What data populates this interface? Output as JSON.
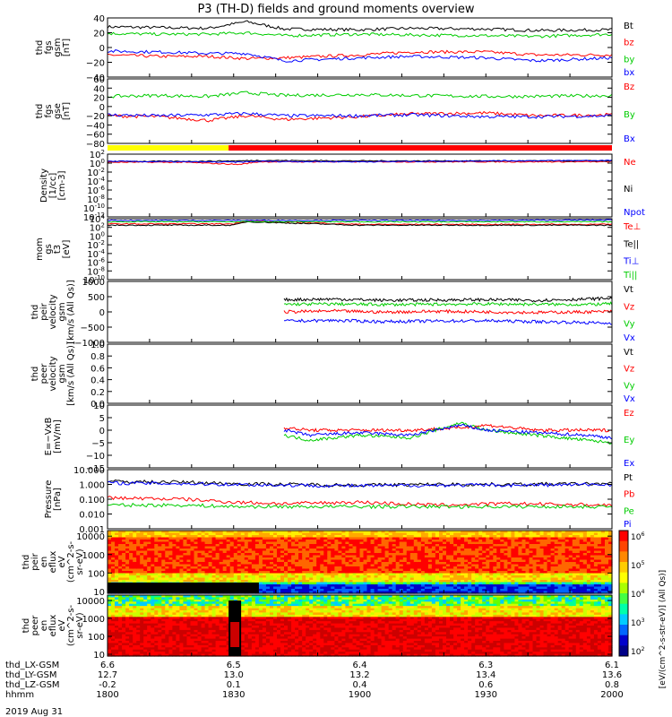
{
  "title": "P3 (TH-D) fields and ground moments overview",
  "date_label": "2019 Aug 31",
  "footer": {
    "rows": [
      {
        "label": "thd_LX-GSM",
        "values": [
          "6.6",
          "6.5",
          "6.4",
          "6.3",
          "6.1"
        ]
      },
      {
        "label": "thd_LY-GSM",
        "values": [
          "12.7",
          "13.0",
          "13.2",
          "13.4",
          "13.6"
        ]
      },
      {
        "label": "thd_LZ-GSM",
        "values": [
          "-0.2",
          "0.1",
          "0.4",
          "0.6",
          "0.8"
        ]
      },
      {
        "label": "hhmm",
        "values": [
          "1800",
          "1830",
          "1900",
          "1930",
          "2000"
        ]
      }
    ]
  },
  "colorbar": {
    "ticks": [
      "10^6",
      "10^5",
      "10^4",
      "10^3",
      "10^2"
    ],
    "label": "[eV/(cm^2-s-str-eV)] (All Qs)]"
  },
  "chart_data": [
    {
      "type": "line",
      "panel": "fgs_gsm",
      "ylabel_lines": [
        "thd",
        "fgs",
        "gsm",
        "[nT]"
      ],
      "ylim": [
        -40,
        40
      ],
      "yticks": [
        "40",
        "20",
        "0",
        "−20",
        "−40"
      ],
      "ytick_values": [
        40,
        20,
        0,
        -20,
        -40
      ],
      "x_hours": [
        18.0,
        18.2,
        18.4,
        18.55,
        18.7,
        19.0,
        19.2,
        19.5,
        19.7,
        20.0
      ],
      "series": [
        {
          "name": "Bt",
          "color": "#000000",
          "values": [
            28,
            27,
            26,
            35,
            25,
            24,
            26,
            25,
            23,
            24
          ]
        },
        {
          "name": "bz",
          "color": "#ff0000",
          "values": [
            -10,
            -12,
            -12,
            -15,
            -14,
            -10,
            -6,
            -6,
            -10,
            -10
          ]
        },
        {
          "name": "by",
          "color": "#00cc00",
          "values": [
            19,
            18,
            18,
            20,
            16,
            18,
            17,
            16,
            15,
            18
          ]
        },
        {
          "name": "bx",
          "color": "#0000ff",
          "values": [
            -5,
            -6,
            -8,
            -8,
            -18,
            -14,
            -12,
            -14,
            -18,
            -14
          ]
        }
      ],
      "legend_colors": [
        "#000000",
        "#ff0000",
        "#00cc00",
        "#0000ff"
      ]
    },
    {
      "type": "line",
      "panel": "fgs_gse",
      "ylabel_lines": [
        "thd",
        "fgs",
        "gse",
        "[nT]"
      ],
      "ylim": [
        -80,
        60
      ],
      "yticks": [
        "60",
        "40",
        "20",
        "0",
        "−20",
        "−40",
        "−60",
        "−80"
      ],
      "ytick_values": [
        60,
        40,
        20,
        0,
        -20,
        -40,
        -60,
        -80
      ],
      "x_hours": [
        18.0,
        18.2,
        18.4,
        18.55,
        18.7,
        19.0,
        19.2,
        19.5,
        19.7,
        20.0
      ],
      "series": [
        {
          "name": "Bz",
          "color": "#ff0000",
          "values": [
            -20,
            -22,
            -30,
            -20,
            -28,
            -22,
            -16,
            -14,
            -20,
            -18
          ]
        },
        {
          "name": "By",
          "color": "#00cc00",
          "values": [
            22,
            24,
            22,
            30,
            24,
            26,
            24,
            22,
            22,
            24
          ]
        },
        {
          "name": "Bx",
          "color": "#0000ff",
          "values": [
            -18,
            -20,
            -18,
            -15,
            -20,
            -20,
            -18,
            -22,
            -22,
            -20
          ]
        }
      ]
    },
    {
      "type": "line",
      "panel": "density",
      "ylabel_lines": [
        "Density",
        "[1/cc]",
        "[cm-3]"
      ],
      "yscale": "log",
      "ylim_log": [
        -12,
        2
      ],
      "yticks": [
        "10^2",
        "10^0",
        "10^-2",
        "10^-4",
        "10^-6",
        "10^-8",
        "10^-10",
        "10^-12"
      ],
      "ytick_values": [
        2,
        0,
        -2,
        -4,
        -6,
        -8,
        -10,
        -12
      ],
      "x_hours": [
        18.0,
        18.3,
        18.52,
        18.6,
        19.0,
        19.5,
        20.0
      ],
      "series": [
        {
          "name": "Ne",
          "color": "#ff0000",
          "values_log10": [
            0.2,
            0.2,
            -0.3,
            0.3,
            0.3,
            0.3,
            0.3
          ]
        },
        {
          "name": "Ni",
          "color": "#000000",
          "values_log10": [
            0.4,
            0.4,
            0.5,
            0.6,
            0.5,
            0.5,
            0.5
          ]
        },
        {
          "name": "Npot",
          "color": "#0000ff",
          "values_log10": [
            0.4,
            0.3,
            0.2,
            0.4,
            0.3,
            0.5,
            0.6
          ]
        }
      ]
    },
    {
      "type": "line",
      "panel": "temperature",
      "ylabel_lines": [
        "mom",
        "gs",
        "t3",
        "[eV]"
      ],
      "ylabel_text": "mogt3 [eV]",
      "yscale": "log",
      "ylim_log": [
        -10,
        4
      ],
      "yticks": [
        "10^4",
        "10^2",
        "10^0",
        "10^-2",
        "10^-4",
        "10^-6",
        "10^-8",
        "10^-10"
      ],
      "ytick_values": [
        4,
        2,
        0,
        -2,
        -4,
        -6,
        -8,
        -10
      ],
      "x_hours": [
        18.0,
        18.5,
        18.55,
        19.0,
        19.5,
        20.0
      ],
      "series": [
        {
          "name": "Te⊥",
          "color": "#ff0000",
          "values_log10": [
            2.8,
            2.8,
            3.5,
            2.7,
            2.7,
            2.7
          ]
        },
        {
          "name": "Te||",
          "color": "#000000",
          "values_log10": [
            2.5,
            2.5,
            3.3,
            2.5,
            2.5,
            2.5
          ]
        },
        {
          "name": "Ti⊥",
          "color": "#0000ff",
          "values_log10": [
            3.6,
            3.6,
            3.6,
            3.6,
            3.6,
            3.7
          ]
        },
        {
          "name": "Ti||",
          "color": "#00cc00",
          "values_log10": [
            3.3,
            3.3,
            3.3,
            3.3,
            3.3,
            3.3
          ]
        }
      ]
    },
    {
      "type": "line",
      "panel": "peir_velocity",
      "ylabel_lines": [
        "thd",
        "peir",
        "velocity",
        "gsm",
        "[km/s (All Qs)]"
      ],
      "ylim": [
        -1000,
        1000
      ],
      "yticks": [
        "1000",
        "500",
        "0",
        "−500",
        "−1000"
      ],
      "ytick_values": [
        1000,
        500,
        0,
        -500,
        -1000
      ],
      "x_hours": [
        18.7,
        18.9,
        19.1,
        19.3,
        19.5,
        19.7,
        19.9,
        20.0
      ],
      "series": [
        {
          "name": "Vt",
          "color": "#000000",
          "values": [
            400,
            420,
            380,
            390,
            400,
            380,
            420,
            450
          ]
        },
        {
          "name": "Vz",
          "color": "#ff0000",
          "values": [
            0,
            30,
            -10,
            20,
            0,
            -20,
            0,
            10
          ]
        },
        {
          "name": "Vy",
          "color": "#00cc00",
          "values": [
            250,
            260,
            240,
            250,
            260,
            250,
            240,
            270
          ]
        },
        {
          "name": "Vx",
          "color": "#0000ff",
          "values": [
            -300,
            -280,
            -320,
            -300,
            -290,
            -320,
            -350,
            -380
          ]
        }
      ]
    },
    {
      "type": "line",
      "panel": "peer_velocity",
      "ylabel_lines": [
        "thd",
        "peer",
        "velocity",
        "gsm",
        "[km/s (All Qs)]"
      ],
      "ylim": [
        0.0,
        1.0
      ],
      "yticks": [
        "1.0",
        "0.8",
        "0.6",
        "0.4",
        "0.2",
        "0.0"
      ],
      "ytick_values": [
        1.0,
        0.8,
        0.6,
        0.4,
        0.2,
        0.0
      ],
      "series": [
        {
          "name": "Vt",
          "color": "#000000",
          "values": []
        },
        {
          "name": "Vz",
          "color": "#ff0000",
          "values": []
        },
        {
          "name": "Vy",
          "color": "#00cc00",
          "values": []
        },
        {
          "name": "Vx",
          "color": "#0000ff",
          "values": []
        }
      ]
    },
    {
      "type": "line",
      "panel": "efield",
      "ylabel_lines": [
        "E=−VxB",
        "[mV/m]"
      ],
      "ylim": [
        -15,
        10
      ],
      "yticks": [
        "10",
        "5",
        "0",
        "−5",
        "−10",
        "−15"
      ],
      "ytick_values": [
        10,
        5,
        0,
        -5,
        -10,
        -15
      ],
      "x_hours": [
        18.7,
        18.8,
        19.0,
        19.2,
        19.4,
        19.5,
        19.7,
        19.9,
        20.0
      ],
      "series": [
        {
          "name": "Ez",
          "color": "#ff0000",
          "values": [
            1,
            0,
            0,
            0,
            1,
            2,
            0,
            0,
            0
          ]
        },
        {
          "name": "Ey",
          "color": "#00cc00",
          "values": [
            -2,
            -4,
            -2,
            -3,
            3,
            0,
            -2,
            -4,
            -5
          ]
        },
        {
          "name": "Ex",
          "color": "#0000ff",
          "values": [
            0,
            -2,
            -1,
            -2,
            2,
            0,
            -1,
            -2,
            -3
          ]
        }
      ]
    },
    {
      "type": "line",
      "panel": "pressure",
      "ylabel_lines": [
        "Pressure",
        "[nPa]"
      ],
      "yscale": "log",
      "ylim_log": [
        -3,
        1
      ],
      "yticks": [
        "10.000",
        "1.000",
        "0.100",
        "0.010",
        "0.001"
      ],
      "ytick_values": [
        1,
        0,
        -1,
        -2,
        -3
      ],
      "x_hours": [
        18.0,
        18.3,
        18.5,
        18.7,
        19.0,
        19.3,
        19.6,
        20.0
      ],
      "series": [
        {
          "name": "Pt",
          "color": "#000000",
          "values_log10": [
            0.2,
            0.15,
            0.05,
            0.0,
            -0.05,
            0.0,
            0.0,
            0.05
          ]
        },
        {
          "name": "Pb",
          "color": "#ff0000",
          "values_log10": [
            -0.9,
            -1.0,
            -1.2,
            -1.3,
            -1.2,
            -1.4,
            -1.3,
            -1.4
          ]
        },
        {
          "name": "Pe",
          "color": "#00cc00",
          "values_log10": [
            -1.4,
            -1.4,
            -1.5,
            -1.5,
            -1.5,
            -1.5,
            -1.5,
            -1.5
          ]
        },
        {
          "name": "Pi",
          "color": "#0000ff",
          "values_log10": [
            0.1,
            0.05,
            0.0,
            -0.05,
            -0.1,
            -0.05,
            -0.05,
            0.0
          ]
        }
      ]
    },
    {
      "type": "heatmap",
      "panel": "peir_energy_flux",
      "ylabel_lines": [
        "thd",
        "peir",
        "en",
        "eflux",
        "eV",
        "(cm^2-s-",
        "sr-eV)"
      ],
      "yticks": [
        "10000",
        "1000",
        "100",
        "10"
      ],
      "ytick_values": [
        10000,
        1000,
        100,
        10
      ],
      "yscale": "log"
    },
    {
      "type": "heatmap",
      "panel": "peer_energy_flux",
      "ylabel_lines": [
        "thd",
        "peer",
        "en",
        "eflux",
        "eV",
        "(cm^2-s-",
        "sr-eV)"
      ],
      "yticks": [
        "10000",
        "1000",
        "100",
        "10"
      ],
      "ytick_values": [
        10000,
        1000,
        100,
        10
      ],
      "yscale": "log"
    }
  ]
}
